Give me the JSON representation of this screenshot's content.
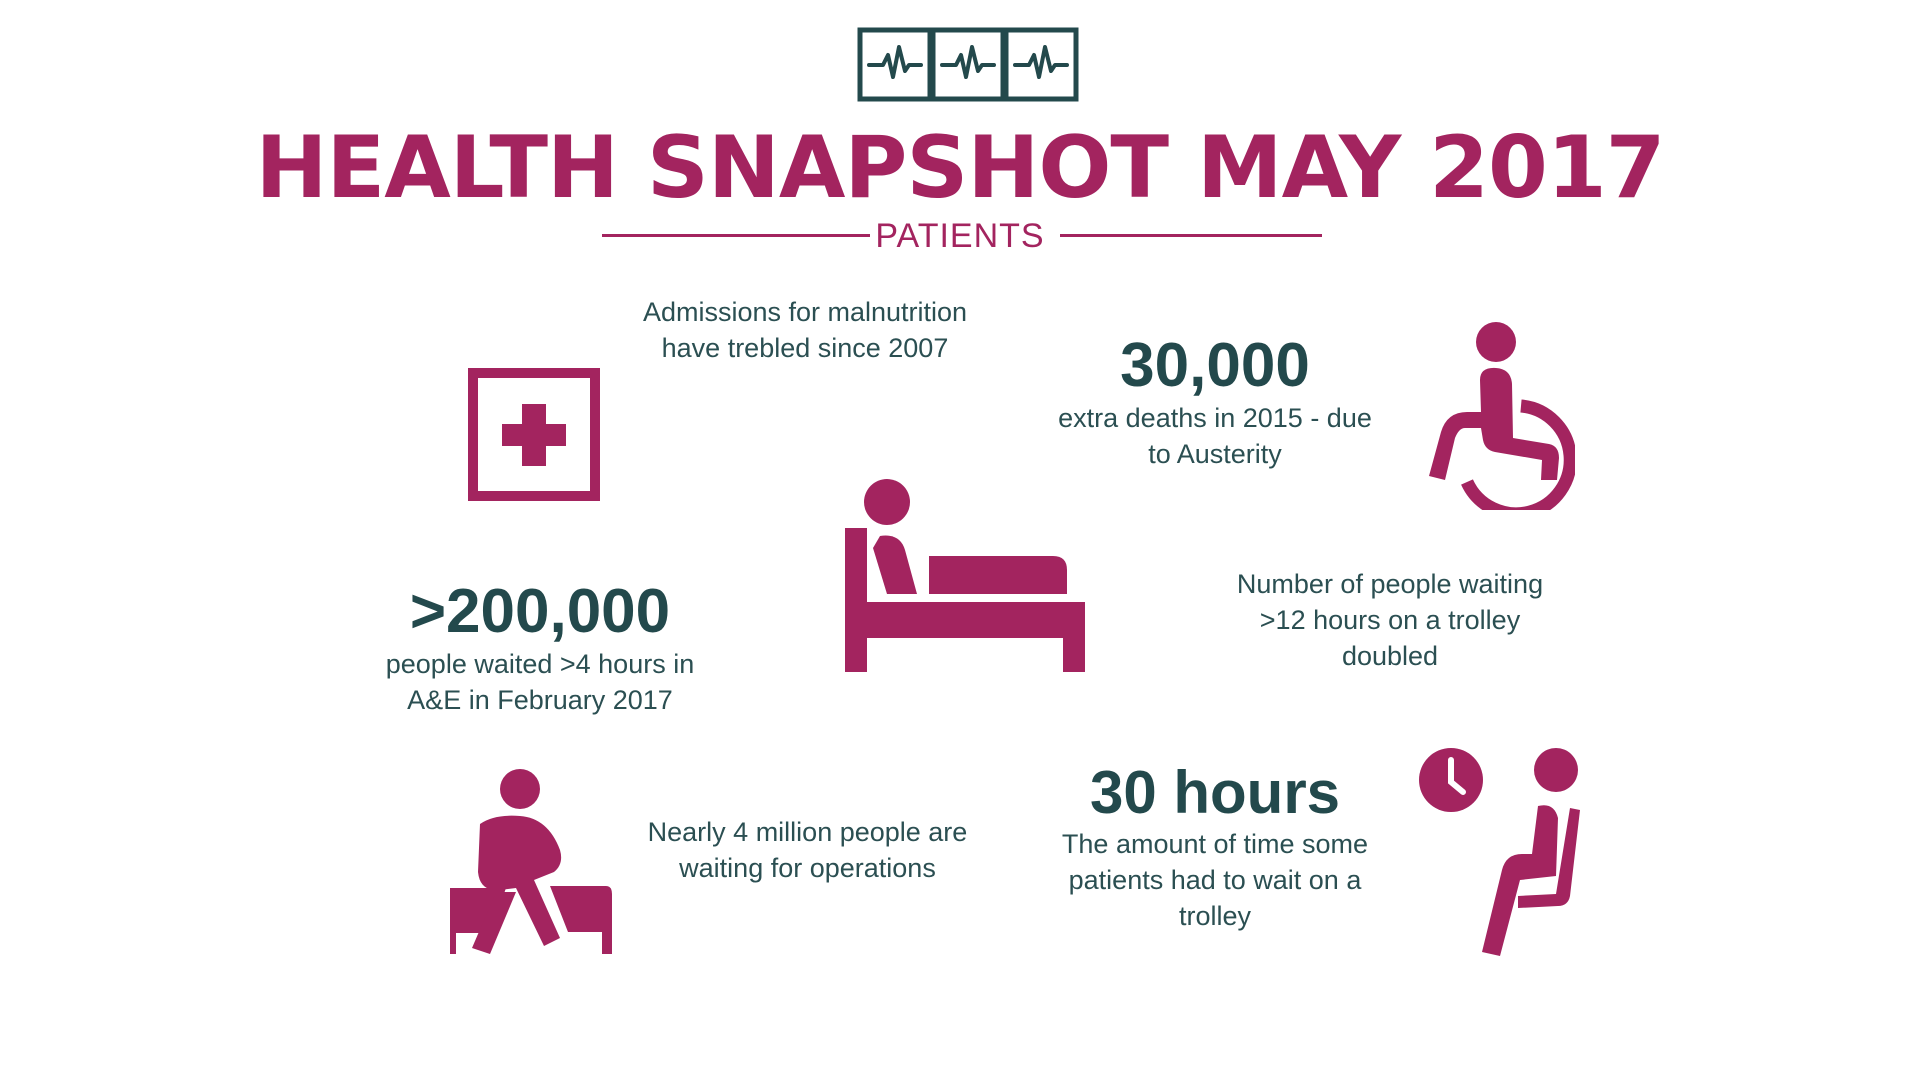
{
  "header": {
    "title": "HEALTH SNAPSHOT MAY 2017",
    "subtitle": "PATIENTS"
  },
  "colors": {
    "accent": "#a3245f",
    "dark": "#23494c",
    "text": "#2b4f52",
    "background": "#ffffff"
  },
  "icons": {
    "logo": "heartbeat-monitor-icon",
    "first_aid": "first-aid-icon",
    "wheelchair": "wheelchair-icon",
    "bed": "hospital-bed-icon",
    "seated_person": "seated-person-icon",
    "waiting": "waiting-clock-icon"
  },
  "stats": {
    "malnutrition": {
      "text": "Admissions for malnutrition have trebled since 2007"
    },
    "deaths": {
      "value": "30,000",
      "text": "extra deaths in 2015 - due to Austerity"
    },
    "ae_wait": {
      "value": ">200,000",
      "text": "people waited >4 hours in A&E in February 2017"
    },
    "trolley_doubled": {
      "text": "Number of people waiting >12 hours on a trolley doubled"
    },
    "operations": {
      "text": "Nearly 4 million people are waiting for operations"
    },
    "trolley_time": {
      "value": "30 hours",
      "text": "The amount of time some patients had to wait on a trolley"
    }
  }
}
